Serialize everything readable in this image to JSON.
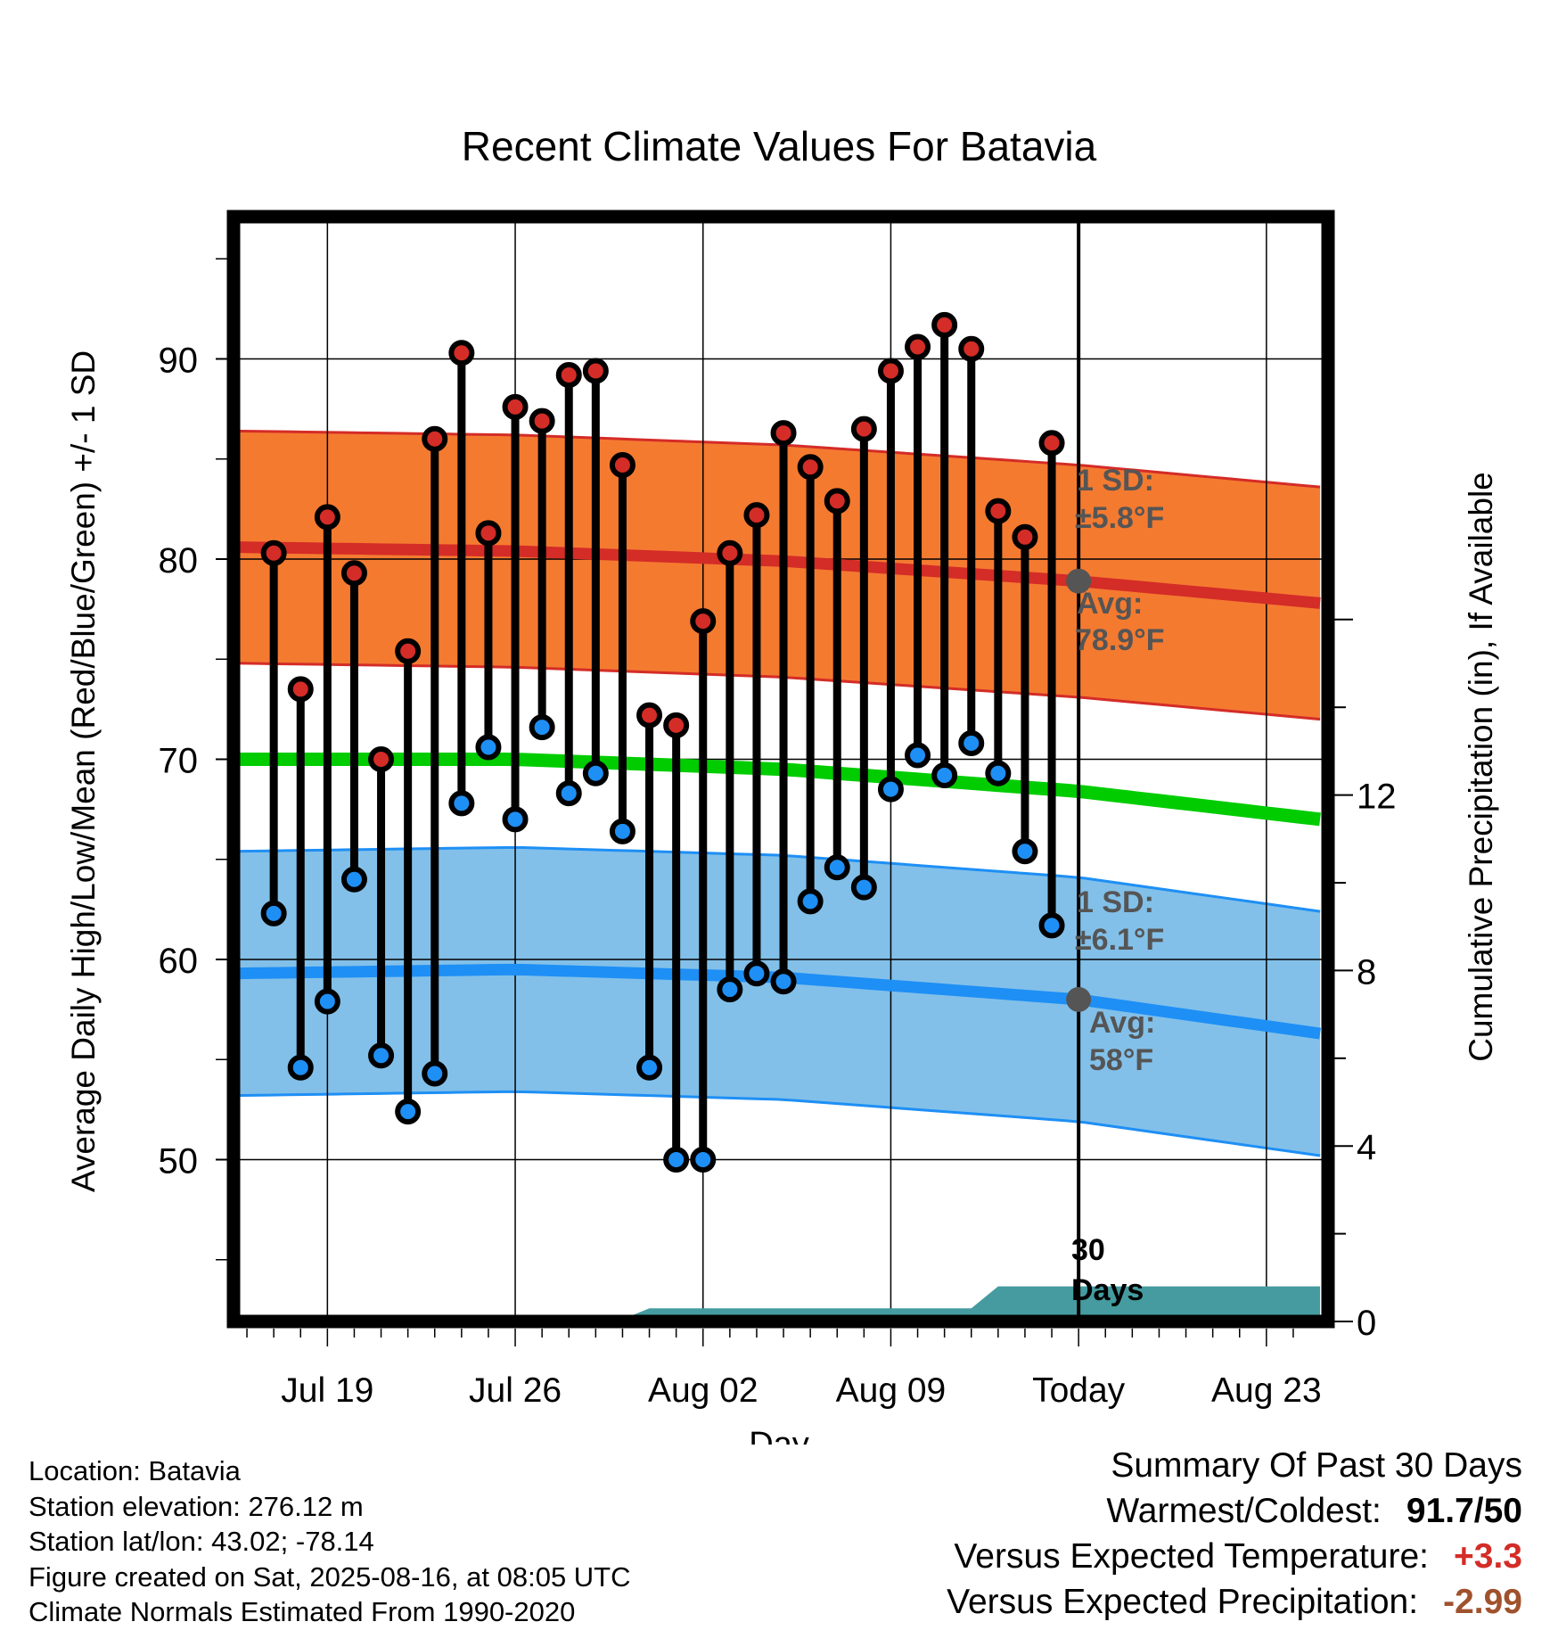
{
  "chart_data": {
    "type": "line",
    "title": "Recent Climate Values For Batavia",
    "xlabel": "Day",
    "ylabel": "Average Daily High/Low/Mean (Red/Blue/Green) +/- 1 SD",
    "y2label": "Cumulative Precipitation (in), If Available",
    "ylim": [
      41,
      98
    ],
    "y2lim": [
      0,
      20
    ],
    "x_ticks": [
      {
        "day": 3,
        "label": "Jul 19"
      },
      {
        "day": 10,
        "label": "Jul 26"
      },
      {
        "day": 17,
        "label": "Aug 02"
      },
      {
        "day": 24,
        "label": "Aug 09"
      },
      {
        "day": 31,
        "label": "Today"
      },
      {
        "day": 38,
        "label": "Aug 23"
      }
    ],
    "y_ticks": [
      50,
      60,
      70,
      80,
      90
    ],
    "y2_ticks": [
      0,
      4,
      8,
      12
    ],
    "xlim": [
      -0.5,
      40
    ],
    "today_day": 31,
    "today_label": "30\nDays",
    "highs": [
      80.3,
      73.5,
      82.1,
      79.3,
      70.0,
      75.4,
      86.0,
      90.3,
      81.3,
      87.6,
      86.9,
      89.2,
      89.4,
      84.7,
      72.2,
      71.7,
      76.9,
      80.3,
      82.2,
      86.3,
      84.6,
      82.9,
      86.5,
      89.4,
      90.6,
      91.7,
      90.5,
      82.4,
      81.1,
      85.8
    ],
    "lows": [
      62.3,
      54.6,
      57.9,
      64.0,
      55.2,
      52.4,
      54.3,
      67.8,
      70.6,
      67.0,
      71.6,
      68.3,
      69.3,
      66.4,
      54.6,
      50.0,
      50.0,
      58.5,
      59.3,
      58.9,
      62.9,
      64.6,
      63.6,
      68.5,
      70.2,
      69.2,
      70.8,
      69.3,
      65.4,
      61.7
    ],
    "normal_high": {
      "x": [
        -0.5,
        10,
        20,
        31,
        40
      ],
      "values": [
        80.6,
        80.4,
        79.9,
        78.9,
        77.8
      ],
      "sd": 5.8
    },
    "normal_low": {
      "x": [
        -0.5,
        10,
        20,
        31,
        40
      ],
      "values": [
        59.3,
        59.5,
        59.1,
        58.0,
        56.3
      ],
      "sd": 6.1
    },
    "normal_mean": {
      "x": [
        -0.5,
        10,
        20,
        31,
        40
      ],
      "values": [
        70.0,
        70.0,
        69.5,
        68.4,
        67.0
      ]
    },
    "precip": {
      "x": [
        -0.5,
        10,
        14,
        15,
        24,
        27,
        28,
        40
      ],
      "values": [
        0,
        0,
        0.05,
        0.3,
        0.3,
        0.3,
        0.8,
        0.8
      ]
    },
    "high_annotation": {
      "sd_title": "1 SD:",
      "sd_text": "±5.8°F",
      "avg_title": "Avg:",
      "avg_text": "78.9°F",
      "avg_value": 78.9
    },
    "low_annotation": {
      "sd_title": "1 SD:",
      "sd_text": "±6.1°F",
      "avg_title": "Avg:",
      "avg_text": "58°F",
      "avg_value": 58.0
    },
    "colors": {
      "high_band": "#f47a30",
      "high_line": "#d42c27",
      "low_band": "#82c0e9",
      "low_line": "#1e8ff5",
      "mean_line": "#00cc00",
      "precip": "#459b9f",
      "high_dot": "#d42c27",
      "low_dot": "#1e8ff5",
      "annotation": "#555555"
    }
  },
  "footer": {
    "location": "Location: Batavia",
    "elevation": "Station elevation: 276.12 m",
    "latlon": "Station lat/lon: 43.02; -78.14",
    "created": "Figure created on Sat, 2025-08-16, at 08:05 UTC",
    "normals": "Climate Normals Estimated From 1990-2020"
  },
  "summary": {
    "title": "Summary Of Past 30 Days",
    "warmest_label": "Warmest/Coldest:",
    "warmest_value": "91.7/50",
    "temp_label": "Versus Expected Temperature:",
    "temp_value": "+3.3",
    "temp_color": "#d42c27",
    "precip_label": "Versus Expected Precipitation:",
    "precip_value": "-2.99",
    "precip_color": "#a0522d"
  }
}
